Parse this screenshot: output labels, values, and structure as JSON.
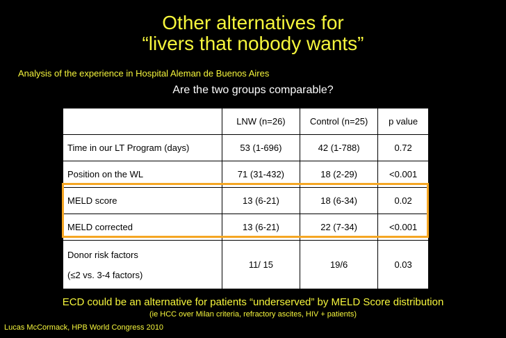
{
  "slide": {
    "title_line1": "Other alternatives for",
    "title_line2": "“livers that nobody wants”",
    "subtitle": "Analysis of the experience in Hospital Aleman de Buenos Aires",
    "question": "Are the two groups comparable?",
    "footer_line1": "ECD could be an alternative for patients “underserved” by MELD Score distribution",
    "footer_line2": "(ie HCC over Milan criteria, refractory ascites, HIV + patients)",
    "credit": "Lucas McCormack, HPB World Congress 2010"
  },
  "table": {
    "headers": [
      "",
      "LNW (n=26)",
      "Control (n=25)",
      "p value"
    ],
    "rows": [
      [
        "Time in our LT Program (days)",
        "53 (1-696)",
        "42 (1-788)",
        "0.72"
      ],
      [
        "Position on the WL",
        "71 (31-432)",
        "18 (2-29)",
        "<0.001"
      ],
      [
        "MELD score",
        "13 (6-21)",
        "18 (6-34)",
        "0.02"
      ],
      [
        "MELD corrected",
        "13 (6-21)",
        "22 (7-34)",
        "<0.001"
      ]
    ],
    "donor_row": {
      "label_line1": "Donor risk factors",
      "label_line2": "(≤2 vs. 3-4 factors)",
      "lnw": "11/ 15",
      "control": "19/6",
      "p": "0.03"
    }
  },
  "colors": {
    "background": "#000000",
    "title_yellow": "#f6f63c",
    "highlight_orange": "#f5a623"
  }
}
